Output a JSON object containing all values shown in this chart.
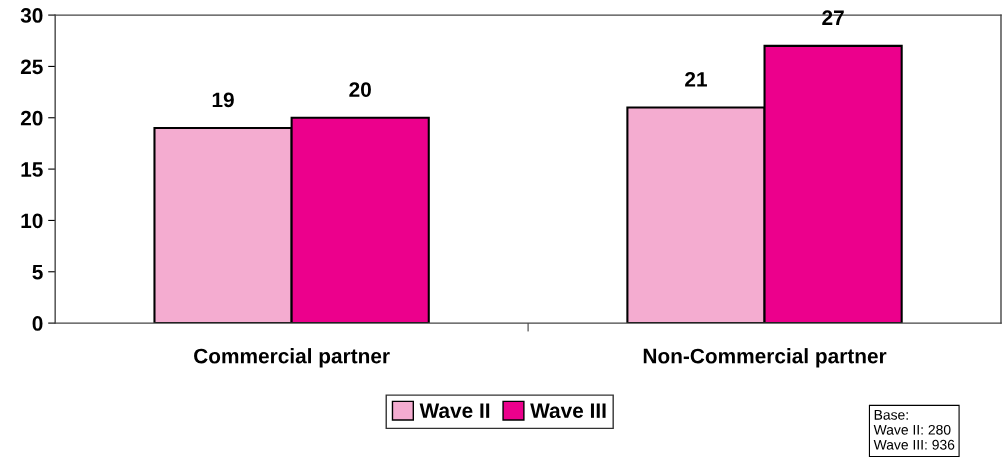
{
  "chart_data": {
    "type": "bar",
    "categories": [
      "Commercial partner",
      "Non-Commercial partner"
    ],
    "series": [
      {
        "name": "Wave II",
        "color": "#f4acd0",
        "values": [
          19,
          21
        ]
      },
      {
        "name": "Wave III",
        "color": "#ec008c",
        "values": [
          20,
          27
        ]
      }
    ],
    "ylim": [
      0,
      30
    ],
    "yticks": [
      0,
      5,
      10,
      15,
      20,
      25,
      30
    ],
    "grid": false,
    "legend": "bottom",
    "data_labels": true,
    "annotations": [
      "Base:\nWave II: 280\nWave III: 936"
    ]
  }
}
